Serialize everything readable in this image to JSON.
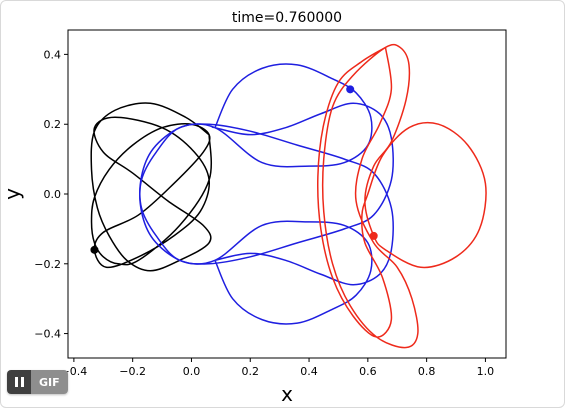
{
  "chart_data": {
    "type": "line",
    "title": "time=0.760000",
    "xlabel": "x",
    "ylabel": "y",
    "xlim": [
      -0.42,
      1.07
    ],
    "ylim": [
      -0.47,
      0.47
    ],
    "xticks": [
      -0.4,
      -0.2,
      0.0,
      0.2,
      0.4,
      0.6,
      0.8,
      1.0
    ],
    "xtick_labels": [
      "−0.4",
      "−0.2",
      "0.0",
      "0.2",
      "0.4",
      "0.6",
      "0.8",
      "1.0"
    ],
    "yticks": [
      -0.4,
      -0.2,
      0.0,
      0.2,
      0.4
    ],
    "ytick_labels": [
      "−0.4",
      "−0.2",
      "0.0",
      "0.2",
      "0.4"
    ],
    "grid": false,
    "series": [
      {
        "color": "#000000",
        "point": [
          -0.33,
          -0.16
        ],
        "path": [
          [
            0.06,
            0.17
          ],
          [
            -0.02,
            0.22
          ],
          [
            -0.14,
            0.26
          ],
          [
            -0.26,
            0.24
          ],
          [
            -0.33,
            0.18
          ],
          [
            -0.34,
            0.07
          ],
          [
            -0.32,
            -0.04
          ],
          [
            -0.28,
            -0.12
          ],
          [
            -0.22,
            -0.19
          ],
          [
            -0.14,
            -0.22
          ],
          [
            -0.04,
            -0.19
          ],
          [
            0.06,
            -0.14
          ],
          [
            0.04,
            -0.09
          ],
          [
            -0.08,
            -0.02
          ],
          [
            -0.2,
            0.06
          ],
          [
            -0.3,
            0.12
          ],
          [
            -0.33,
            0.19
          ],
          [
            -0.26,
            0.22
          ],
          [
            -0.1,
            0.19
          ],
          [
            0.01,
            0.12
          ],
          [
            0.06,
            0.04
          ],
          [
            0.03,
            -0.05
          ],
          [
            -0.06,
            -0.12
          ],
          [
            -0.18,
            -0.18
          ],
          [
            -0.29,
            -0.21
          ],
          [
            -0.33,
            -0.16
          ],
          [
            -0.3,
            -0.11
          ],
          [
            -0.18,
            -0.06
          ],
          [
            -0.06,
            0.03
          ],
          [
            0.04,
            0.12
          ],
          [
            0.06,
            0.17
          ],
          [
            0.0,
            0.2
          ],
          [
            -0.1,
            0.19
          ],
          [
            -0.2,
            0.14
          ],
          [
            -0.28,
            0.07
          ],
          [
            -0.33,
            -0.01
          ],
          [
            -0.34,
            -0.08
          ],
          [
            -0.33,
            -0.14
          ],
          [
            -0.3,
            -0.18
          ],
          [
            -0.25,
            -0.2
          ],
          [
            -0.18,
            -0.19
          ],
          [
            -0.04,
            -0.09
          ],
          [
            0.06,
            0.04
          ],
          [
            0.06,
            0.17
          ]
        ]
      },
      {
        "color": "#1f1fe0",
        "point": [
          0.54,
          0.3
        ],
        "path": [
          [
            0.08,
            0.19
          ],
          [
            0.14,
            0.3
          ],
          [
            0.24,
            0.36
          ],
          [
            0.36,
            0.37
          ],
          [
            0.48,
            0.33
          ],
          [
            0.56,
            0.29
          ],
          [
            0.61,
            0.22
          ],
          [
            0.6,
            0.14
          ],
          [
            0.52,
            0.09
          ],
          [
            0.4,
            0.08
          ],
          [
            0.24,
            0.09
          ],
          [
            0.08,
            0.19
          ],
          [
            -0.04,
            0.19
          ],
          [
            -0.12,
            0.12
          ],
          [
            -0.17,
            0.04
          ],
          [
            -0.17,
            -0.05
          ],
          [
            -0.13,
            -0.13
          ],
          [
            -0.04,
            -0.19
          ],
          [
            0.06,
            -0.2
          ],
          [
            0.2,
            -0.18
          ],
          [
            0.36,
            -0.14
          ],
          [
            0.52,
            -0.1
          ],
          [
            0.62,
            -0.06
          ],
          [
            0.68,
            0.04
          ],
          [
            0.68,
            0.16
          ],
          [
            0.64,
            0.23
          ],
          [
            0.55,
            0.26
          ],
          [
            0.44,
            0.23
          ],
          [
            0.32,
            0.19
          ],
          [
            0.2,
            0.17
          ],
          [
            0.08,
            0.19
          ],
          [
            0.08,
            0.19
          ]
        ]
      },
      {
        "color": "#1f1fe0",
        "path": [
          [
            0.08,
            -0.19
          ],
          [
            0.14,
            -0.3
          ],
          [
            0.24,
            -0.36
          ],
          [
            0.36,
            -0.37
          ],
          [
            0.48,
            -0.33
          ],
          [
            0.56,
            -0.29
          ],
          [
            0.61,
            -0.22
          ],
          [
            0.6,
            -0.14
          ],
          [
            0.52,
            -0.09
          ],
          [
            0.4,
            -0.08
          ],
          [
            0.24,
            -0.09
          ],
          [
            0.08,
            -0.19
          ],
          [
            -0.04,
            -0.19
          ],
          [
            -0.12,
            -0.12
          ],
          [
            -0.17,
            -0.04
          ],
          [
            -0.17,
            0.05
          ],
          [
            -0.13,
            0.13
          ],
          [
            -0.04,
            0.19
          ],
          [
            0.06,
            0.2
          ],
          [
            0.2,
            0.18
          ],
          [
            0.36,
            0.14
          ],
          [
            0.52,
            0.1
          ],
          [
            0.62,
            0.06
          ],
          [
            0.68,
            -0.04
          ],
          [
            0.68,
            -0.16
          ],
          [
            0.64,
            -0.23
          ],
          [
            0.55,
            -0.26
          ],
          [
            0.44,
            -0.23
          ],
          [
            0.32,
            -0.19
          ],
          [
            0.2,
            -0.17
          ],
          [
            0.08,
            -0.19
          ]
        ]
      },
      {
        "color": "#ee2a1b",
        "point": [
          0.62,
          -0.12
        ],
        "path": [
          [
            0.66,
            0.42
          ],
          [
            0.58,
            0.38
          ],
          [
            0.5,
            0.32
          ],
          [
            0.45,
            0.2
          ],
          [
            0.43,
            0.05
          ],
          [
            0.44,
            -0.1
          ],
          [
            0.48,
            -0.24
          ],
          [
            0.55,
            -0.35
          ],
          [
            0.63,
            -0.41
          ],
          [
            0.68,
            -0.36
          ],
          [
            0.65,
            -0.24
          ],
          [
            0.59,
            -0.14
          ],
          [
            0.58,
            -0.06
          ],
          [
            0.6,
            0.0
          ],
          [
            0.65,
            0.11
          ],
          [
            0.74,
            0.19
          ],
          [
            0.84,
            0.2
          ],
          [
            0.94,
            0.14
          ],
          [
            1.0,
            0.03
          ],
          [
            0.98,
            -0.1
          ],
          [
            0.9,
            -0.18
          ],
          [
            0.78,
            -0.21
          ],
          [
            0.66,
            -0.16
          ],
          [
            0.62,
            -0.12
          ],
          [
            0.59,
            -0.02
          ],
          [
            0.62,
            0.08
          ],
          [
            0.68,
            0.15
          ],
          [
            0.73,
            0.27
          ],
          [
            0.74,
            0.37
          ],
          [
            0.71,
            0.42
          ],
          [
            0.66,
            0.42
          ],
          [
            0.55,
            0.34
          ],
          [
            0.48,
            0.25
          ],
          [
            0.45,
            0.1
          ],
          [
            0.45,
            -0.05
          ],
          [
            0.48,
            -0.2
          ],
          [
            0.54,
            -0.32
          ],
          [
            0.63,
            -0.41
          ],
          [
            0.73,
            -0.44
          ],
          [
            0.77,
            -0.4
          ],
          [
            0.75,
            -0.3
          ],
          [
            0.7,
            -0.21
          ],
          [
            0.62,
            -0.14
          ],
          [
            0.56,
            -0.02
          ],
          [
            0.58,
            0.1
          ],
          [
            0.64,
            0.2
          ],
          [
            0.68,
            0.3
          ],
          [
            0.66,
            0.42
          ]
        ]
      }
    ]
  },
  "gif_badge": {
    "label": "GIF",
    "pause_icon": "pause-icon"
  }
}
